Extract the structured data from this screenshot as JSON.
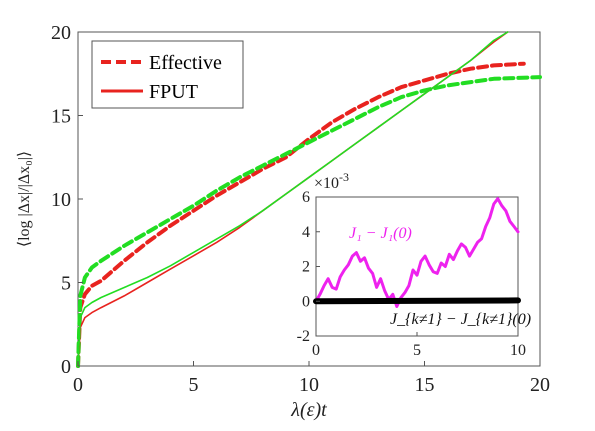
{
  "chart_data": [
    {
      "type": "line",
      "xlabel": "λ(ε)t",
      "ylabel": "⟨log |Δx|/|Δx₀|⟩",
      "xlim": [
        0,
        20
      ],
      "ylim": [
        0,
        20
      ],
      "xticks": [
        "0",
        "5",
        "10",
        "15",
        "20"
      ],
      "yticks": [
        "0",
        "5",
        "10",
        "15",
        "20"
      ],
      "grid": false,
      "legend_position": "top-left",
      "legend": [
        {
          "label": "Effective",
          "style": "dashed",
          "color": "#e8231f"
        },
        {
          "label": "FPUT",
          "style": "solid",
          "color": "#e8231f"
        }
      ],
      "series": [
        {
          "name": "Effective",
          "color": "#e8231f",
          "style": "dashed",
          "x": [
            0,
            0.1,
            0.3,
            0.6,
            1,
            2,
            3,
            4,
            5,
            6,
            7,
            8,
            9,
            10,
            11,
            12,
            13,
            14,
            15,
            16,
            17,
            18,
            19.3
          ],
          "y": [
            0,
            3.5,
            4.3,
            4.8,
            5.1,
            6.3,
            7.4,
            8.4,
            9.3,
            10.2,
            11.0,
            11.8,
            12.5,
            13.6,
            14.6,
            15.4,
            16.1,
            16.7,
            17.1,
            17.5,
            17.8,
            18.0,
            18.1
          ]
        },
        {
          "name": "Effective",
          "color": "#22dd22",
          "style": "dashed",
          "x": [
            0,
            0.1,
            0.3,
            0.6,
            1,
            2,
            3,
            4,
            5,
            6,
            7,
            8,
            9,
            10,
            11,
            12,
            13,
            14,
            15,
            16,
            17,
            18,
            20
          ],
          "y": [
            0,
            4.2,
            5.3,
            5.9,
            6.3,
            7.2,
            8.0,
            8.8,
            9.6,
            10.5,
            11.3,
            12.0,
            12.7,
            13.4,
            14.1,
            14.8,
            15.5,
            16.1,
            16.5,
            16.8,
            17.0,
            17.2,
            17.3
          ]
        },
        {
          "name": "FPUT",
          "color": "#e8231f",
          "style": "solid",
          "x": [
            0,
            0.1,
            0.3,
            0.6,
            1,
            2,
            3,
            4,
            5,
            6,
            7,
            8,
            9,
            10,
            11,
            12,
            13,
            14,
            15,
            16,
            17,
            18,
            18.6
          ],
          "y": [
            0,
            2.3,
            2.9,
            3.2,
            3.5,
            4.2,
            5.0,
            5.8,
            6.6,
            7.4,
            8.3,
            9.3,
            10.3,
            11.3,
            12.3,
            13.3,
            14.3,
            15.3,
            16.3,
            17.3,
            18.3,
            19.4,
            20.0
          ]
        },
        {
          "name": "FPUT",
          "color": "#22dd22",
          "style": "solid",
          "x": [
            0,
            0.1,
            0.3,
            0.6,
            1,
            2,
            3,
            4,
            5,
            6,
            7,
            8,
            9,
            10,
            11,
            12,
            13,
            14,
            15,
            16,
            17,
            18,
            18.6
          ],
          "y": [
            0,
            2.9,
            3.5,
            3.8,
            4.1,
            4.7,
            5.3,
            6.0,
            6.8,
            7.6,
            8.4,
            9.3,
            10.3,
            11.3,
            12.3,
            13.3,
            14.3,
            15.3,
            16.3,
            17.3,
            18.3,
            19.5,
            20.0
          ]
        }
      ]
    },
    {
      "type": "line",
      "inset": true,
      "xlim": [
        0,
        10
      ],
      "ylim": [
        -2,
        6
      ],
      "xticks": [
        "0",
        "5",
        "10"
      ],
      "yticks": [
        "-2",
        "0",
        "2",
        "4",
        "6"
      ],
      "multiplier_base": "×10",
      "multiplier_exp": "-3",
      "annotation_top": "J₁ − J₁(0)",
      "annotation_bottom": "J_{k≠1} − J_{k≠1}(0)",
      "series": [
        {
          "color": "#ee22ee",
          "x": [
            0,
            0.2,
            0.4,
            0.6,
            0.8,
            1.0,
            1.2,
            1.4,
            1.6,
            1.8,
            2.0,
            2.2,
            2.4,
            2.6,
            2.8,
            3.0,
            3.2,
            3.4,
            3.6,
            3.8,
            4.0,
            4.2,
            4.4,
            4.6,
            4.8,
            5.0,
            5.2,
            5.4,
            5.6,
            5.8,
            6.0,
            6.2,
            6.4,
            6.6,
            6.8,
            7.0,
            7.2,
            7.4,
            7.6,
            7.8,
            8.0,
            8.2,
            8.4,
            8.6,
            8.8,
            9.0,
            9.2,
            9.4,
            9.6,
            9.8,
            10.0
          ],
          "y": [
            0,
            0.4,
            0.9,
            1.3,
            0.8,
            0.7,
            1.4,
            1.8,
            2.1,
            2.6,
            2.8,
            2.3,
            2.5,
            1.9,
            1.6,
            0.8,
            1.3,
            0.6,
            0.1,
            0.4,
            -0.3,
            0.2,
            0.5,
            0.9,
            1.8,
            1.5,
            2.3,
            2.6,
            2.1,
            1.7,
            1.6,
            2.2,
            2.0,
            2.7,
            2.4,
            2.9,
            3.3,
            3.1,
            2.6,
            3.0,
            3.4,
            3.6,
            4.3,
            4.8,
            5.6,
            5.9,
            5.5,
            5.2,
            4.6,
            4.3,
            4.0
          ]
        },
        {
          "color": "#000000",
          "x": [
            0,
            10
          ],
          "y": [
            0,
            0.05
          ]
        }
      ]
    }
  ]
}
